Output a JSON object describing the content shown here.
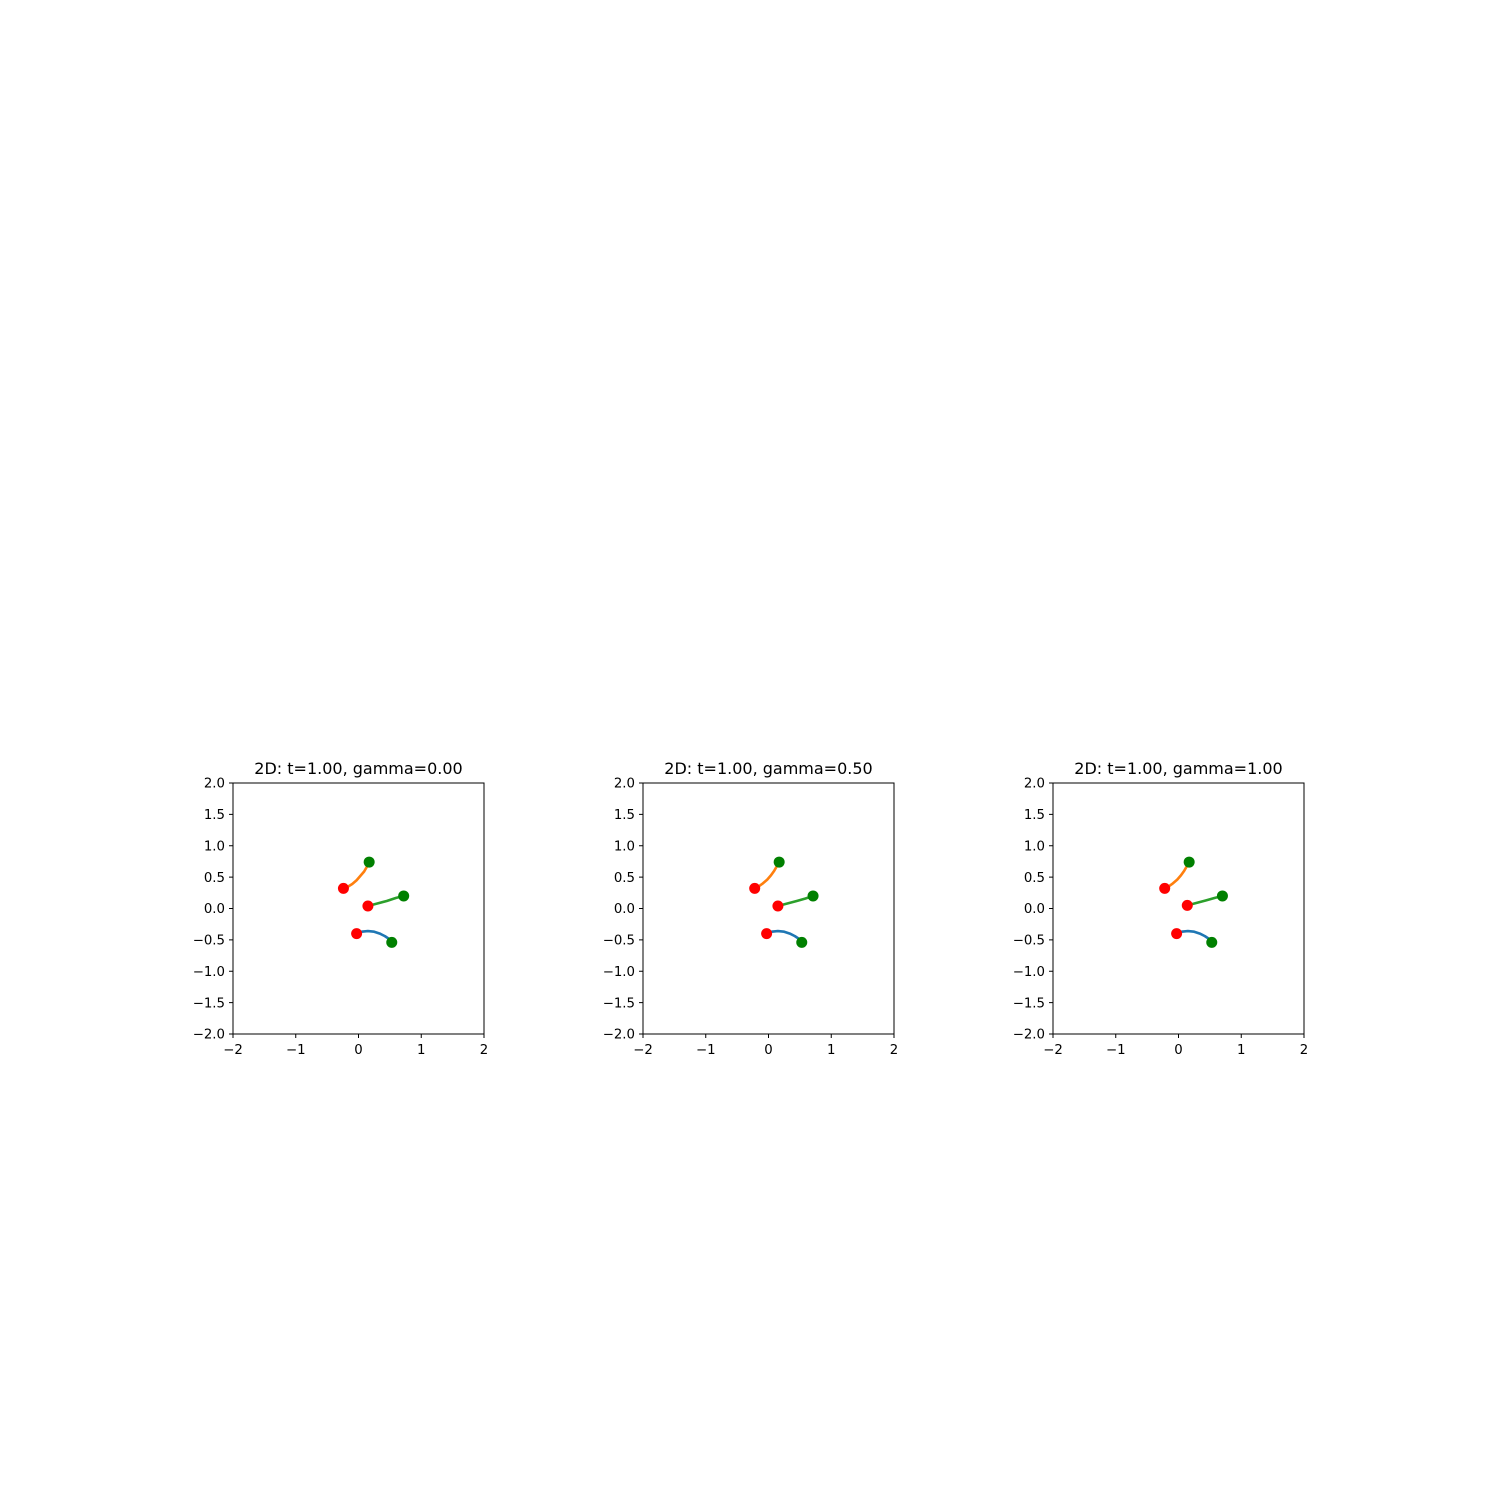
{
  "chart_data": [
    {
      "type": "line",
      "title": "2D: t=1.00, gamma=0.00",
      "xlabel": "",
      "ylabel": "",
      "xlim": [
        -2,
        2
      ],
      "ylim": [
        -2,
        2
      ],
      "xticks": [
        -2,
        -1,
        0,
        1,
        2
      ],
      "yticks": [
        -2.0,
        -1.5,
        -1.0,
        -0.5,
        0.0,
        0.5,
        1.0,
        1.5,
        2.0
      ],
      "xtick_labels": [
        "−2",
        "−1",
        "0",
        "1",
        "2"
      ],
      "ytick_labels": [
        "−2.0",
        "−1.5",
        "−1.0",
        "−0.5",
        "0.0",
        "0.5",
        "1.0",
        "1.5",
        "2.0"
      ],
      "grid": false,
      "series": [
        {
          "color": "#1f77b4",
          "x": [
            -0.03,
            0.05,
            0.15,
            0.25,
            0.34,
            0.42,
            0.48,
            0.53
          ],
          "y": [
            -0.4,
            -0.37,
            -0.36,
            -0.37,
            -0.4,
            -0.44,
            -0.48,
            -0.54
          ]
        },
        {
          "color": "#ff7f0e",
          "x": [
            -0.24,
            -0.18,
            -0.1,
            -0.03,
            0.03,
            0.09,
            0.13,
            0.17
          ],
          "y": [
            0.32,
            0.34,
            0.39,
            0.45,
            0.52,
            0.59,
            0.66,
            0.74
          ]
        },
        {
          "color": "#2ca02c",
          "x": [
            0.15,
            0.3,
            0.45,
            0.6,
            0.72
          ],
          "y": [
            0.04,
            0.08,
            0.12,
            0.17,
            0.2
          ]
        }
      ],
      "start_points": {
        "color": "#ff0000",
        "x": [
          -0.03,
          -0.24,
          0.15
        ],
        "y": [
          -0.4,
          0.32,
          0.04
        ]
      },
      "end_points": {
        "color": "#008000",
        "x": [
          0.53,
          0.17,
          0.72
        ],
        "y": [
          -0.54,
          0.74,
          0.2
        ]
      }
    },
    {
      "type": "line",
      "title": "2D: t=1.00, gamma=0.50",
      "xlabel": "",
      "ylabel": "",
      "xlim": [
        -2,
        2
      ],
      "ylim": [
        -2,
        2
      ],
      "xticks": [
        -2,
        -1,
        0,
        1,
        2
      ],
      "yticks": [
        -2.0,
        -1.5,
        -1.0,
        -0.5,
        0.0,
        0.5,
        1.0,
        1.5,
        2.0
      ],
      "xtick_labels": [
        "−2",
        "−1",
        "0",
        "1",
        "2"
      ],
      "ytick_labels": [
        "−2.0",
        "−1.5",
        "−1.0",
        "−0.5",
        "0.0",
        "0.5",
        "1.0",
        "1.5",
        "2.0"
      ],
      "grid": false,
      "series": [
        {
          "color": "#1f77b4",
          "x": [
            -0.03,
            0.05,
            0.15,
            0.25,
            0.34,
            0.42,
            0.48,
            0.53
          ],
          "y": [
            -0.4,
            -0.37,
            -0.36,
            -0.37,
            -0.4,
            -0.44,
            -0.48,
            -0.54
          ]
        },
        {
          "color": "#ff7f0e",
          "x": [
            -0.22,
            -0.16,
            -0.09,
            -0.02,
            0.04,
            0.09,
            0.13,
            0.17
          ],
          "y": [
            0.32,
            0.35,
            0.4,
            0.46,
            0.53,
            0.6,
            0.67,
            0.74
          ]
        },
        {
          "color": "#2ca02c",
          "x": [
            0.15,
            0.3,
            0.45,
            0.59,
            0.71
          ],
          "y": [
            0.04,
            0.08,
            0.12,
            0.16,
            0.2
          ]
        }
      ],
      "start_points": {
        "color": "#ff0000",
        "x": [
          -0.03,
          -0.22,
          0.15
        ],
        "y": [
          -0.4,
          0.32,
          0.04
        ]
      },
      "end_points": {
        "color": "#008000",
        "x": [
          0.53,
          0.17,
          0.71
        ],
        "y": [
          -0.54,
          0.74,
          0.2
        ]
      }
    },
    {
      "type": "line",
      "title": "2D: t=1.00, gamma=1.00",
      "xlabel": "",
      "ylabel": "",
      "xlim": [
        -2,
        2
      ],
      "ylim": [
        -2,
        2
      ],
      "xticks": [
        -2,
        -1,
        0,
        1,
        2
      ],
      "yticks": [
        -2.0,
        -1.5,
        -1.0,
        -0.5,
        0.0,
        0.5,
        1.0,
        1.5,
        2.0
      ],
      "xtick_labels": [
        "−2",
        "−1",
        "0",
        "1",
        "2"
      ],
      "ytick_labels": [
        "−2.0",
        "−1.5",
        "−1.0",
        "−0.5",
        "0.0",
        "0.5",
        "1.0",
        "1.5",
        "2.0"
      ],
      "grid": false,
      "series": [
        {
          "color": "#1f77b4",
          "x": [
            -0.03,
            0.05,
            0.15,
            0.25,
            0.34,
            0.42,
            0.48,
            0.53
          ],
          "y": [
            -0.4,
            -0.37,
            -0.36,
            -0.37,
            -0.4,
            -0.44,
            -0.48,
            -0.54
          ]
        },
        {
          "color": "#ff7f0e",
          "x": [
            -0.22,
            -0.16,
            -0.09,
            -0.02,
            0.04,
            0.09,
            0.13,
            0.17
          ],
          "y": [
            0.32,
            0.35,
            0.4,
            0.46,
            0.53,
            0.6,
            0.67,
            0.74
          ]
        },
        {
          "color": "#2ca02c",
          "x": [
            0.14,
            0.29,
            0.44,
            0.58,
            0.7
          ],
          "y": [
            0.05,
            0.09,
            0.13,
            0.17,
            0.2
          ]
        }
      ],
      "start_points": {
        "color": "#ff0000",
        "x": [
          -0.03,
          -0.22,
          0.14
        ],
        "y": [
          -0.4,
          0.32,
          0.05
        ]
      },
      "end_points": {
        "color": "#008000",
        "x": [
          0.53,
          0.17,
          0.7
        ],
        "y": [
          -0.54,
          0.74,
          0.2
        ]
      }
    }
  ]
}
